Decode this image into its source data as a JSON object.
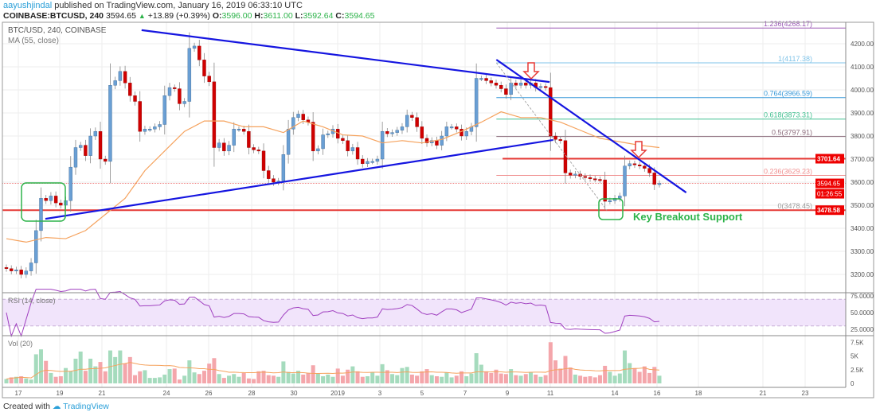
{
  "header": {
    "user": "aayushjindal",
    "published": "published on TradingView.com, January 16, 2019 06:33:10 UTC",
    "symbol": "COINBASE:BTCUSD, 240",
    "last": "3594.65",
    "change": "+13.89 (+0.39%)",
    "o_label": "O:",
    "o": "3596.00",
    "h_label": "H:",
    "h": "3611.00",
    "l_label": "L:",
    "l": "3592.64",
    "c_label": "C:",
    "c": "3594.65"
  },
  "footer": {
    "created": "Created with",
    "brand": "TradingView"
  },
  "colors": {
    "up": "#6a9fd4",
    "down": "#d00000",
    "ma": "#f5a25d",
    "trendline": "#1515e0",
    "rsi": "#a040c0",
    "vol_up": "#a5dbbd",
    "vol_down": "#f4a6ab",
    "annotation_green": "#2db34a"
  },
  "chart_data": [
    {
      "type": "candlestick",
      "title": "BTC/USD, 240, COINBASE",
      "ma_label": "MA (55, close)",
      "ylim": [
        3150,
        4300
      ],
      "y_ticks": [
        "3200.00",
        "3300.00",
        "3400.00",
        "3500.00",
        "3600.00",
        "3700.00",
        "3800.00",
        "3900.00",
        "4000.00",
        "4100.00",
        "4200.00"
      ],
      "x_ticks": [
        "17",
        "19",
        "21",
        "24",
        "26",
        "28",
        "30",
        "2019",
        "3",
        "5",
        "7",
        "9",
        "11",
        "14",
        "16",
        "18",
        "21",
        "23"
      ],
      "closes": [
        3225,
        3215,
        3220,
        3200,
        3215,
        3250,
        3390,
        3530,
        3520,
        3540,
        3510,
        3500,
        3520,
        3665,
        3750,
        3760,
        3715,
        3800,
        3820,
        3700,
        3690,
        4020,
        4040,
        4080,
        4030,
        3975,
        3950,
        3820,
        3830,
        3830,
        3840,
        3850,
        3975,
        4010,
        4005,
        3940,
        3950,
        4180,
        4190,
        4130,
        4060,
        4035,
        3750,
        3770,
        3735,
        3760,
        3830,
        3830,
        3820,
        3750,
        3740,
        3735,
        3650,
        3615,
        3600,
        3605,
        3720,
        3830,
        3880,
        3895,
        3870,
        3860,
        3735,
        3745,
        3805,
        3810,
        3830,
        3790,
        3780,
        3735,
        3750,
        3700,
        3680,
        3690,
        3690,
        3700,
        3820,
        3810,
        3815,
        3825,
        3840,
        3890,
        3880,
        3840,
        3790,
        3770,
        3780,
        3760,
        3800,
        3840,
        3840,
        3830,
        3800,
        3820,
        3840,
        4050,
        4050,
        4040,
        4030,
        4020,
        4005,
        3980,
        4030,
        4020,
        4030,
        4020,
        4030,
        4010,
        4015,
        4010,
        3800,
        3785,
        3780,
        3640,
        3630,
        3635,
        3625,
        3620,
        3615,
        3612,
        3610,
        3517,
        3520,
        3530,
        3540,
        3670,
        3680,
        3675,
        3670,
        3660,
        3640,
        3590,
        3594.65
      ],
      "ma_values": [
        3355,
        3340,
        3360,
        3355,
        3390,
        3460,
        3530,
        3650,
        3735,
        3820,
        3865,
        3865,
        3840,
        3840,
        3815,
        3865,
        3840,
        3805,
        3800,
        3770,
        3780,
        3770,
        3785,
        3820,
        3860,
        3905,
        3880,
        3880,
        3860,
        3825,
        3790,
        3775,
        3760,
        3750
      ],
      "trendlines": [
        {
          "from": [
            "2018-12-22T19:00",
            4259
          ],
          "to": [
            "2019-01-10T23:00",
            4034
          ]
        },
        {
          "from": [
            "2018-12-18T06:30",
            3441
          ],
          "to": [
            "2019-01-11T03:00",
            3783
          ]
        },
        {
          "from": [
            "2019-01-08T11:00",
            4131
          ],
          "to": [
            "2019-01-17T09:00",
            3555
          ]
        }
      ],
      "fib": {
        "start": "2019-01-08T11:00",
        "levels": [
          {
            "label": "1.236(4268.17)",
            "price": 4268.17,
            "color": "#9b59b6"
          },
          {
            "label": "1(4117.38)",
            "price": 4117.38,
            "color": "#7fc3e8"
          },
          {
            "label": "0.764(3966.59)",
            "price": 3966.59,
            "color": "#3a9ad9"
          },
          {
            "label": "0.618(3873.31)",
            "price": 3873.31,
            "color": "#40c090"
          },
          {
            "label": "0.5(3797.91)",
            "price": 3797.91,
            "color": "#8a6a7a"
          },
          {
            "label": "0.236(3629.23)",
            "price": 3629.23,
            "color": "#f09090"
          },
          {
            "label": "0(3478.45)",
            "price": 3478.45,
            "color": "#999999"
          }
        ]
      },
      "hlines": [
        {
          "price": 3701.64,
          "label": "3701.64",
          "from": "2019-01-08T18:00"
        },
        {
          "price": 3478.58,
          "label": "3478.58",
          "from": null
        }
      ],
      "last_price": {
        "price": 3594.65,
        "label": "3594.65",
        "countdown": "01:26:55"
      },
      "annotation": "Key Breakout Support"
    },
    {
      "type": "line",
      "title": "RSI (14, close)",
      "ylim": [
        15,
        85
      ],
      "y_ticks": [
        "25.0000",
        "50.0000",
        "75.0000"
      ],
      "band": [
        30,
        70
      ]
    },
    {
      "type": "bar",
      "title": "Vol (20)",
      "ylim": [
        0,
        8.5
      ],
      "y_ticks": [
        "0",
        "2.5K",
        "5K",
        "7.5K"
      ],
      "values_k": [
        0.8,
        1.1,
        1.2,
        1.3,
        0.9,
        0.7,
        5.3,
        6.2,
        4.1,
        1.9,
        1.2,
        1.3,
        2.8,
        2.2,
        4.5,
        5.8,
        2.3,
        4.5,
        3.1,
        3.9,
        2.2,
        6.0,
        4.8,
        6.0,
        3.6,
        4.8,
        1.5,
        2.2,
        2.4,
        1.0,
        1.0,
        1.1,
        1.6,
        2.6,
        2.7,
        0.7,
        1.4,
        4.2,
        2.0,
        1.7,
        2.3,
        3.6,
        4.6,
        1.7,
        1.0,
        1.4,
        1.7,
        1.2,
        1.9,
        0.9,
        0.8,
        2.2,
        2.3,
        1.5,
        1.4,
        1.2,
        4.0,
        2.1,
        1.8,
        2.3,
        1.6,
        1.9,
        3.3,
        1.8,
        1.3,
        1.6,
        1.2,
        2.7,
        1.4,
        2.5,
        3.1,
        2.2,
        1.2,
        1.3,
        2.0,
        1.4,
        3.5,
        2.4,
        1.7,
        1.5,
        2.8,
        3.0,
        1.6,
        1.4,
        2.2,
        2.6,
        1.5,
        1.3,
        1.2,
        2.0,
        1.1,
        1.4,
        2.2,
        1.3,
        1.8,
        5.5,
        3.4,
        2.2,
        1.9,
        2.5,
        1.8,
        1.7,
        2.6,
        1.5,
        1.4,
        1.7,
        2.1,
        1.6,
        1.2,
        1.5,
        7.5,
        4.2,
        2.7,
        5.0,
        2.9,
        1.6,
        1.4,
        1.2,
        1.3,
        1.1,
        1.5,
        3.2,
        2.1,
        1.4,
        1.8,
        6.0,
        3.7,
        2.8,
        2.1,
        3.1,
        1.9,
        3.0,
        1.4
      ]
    }
  ]
}
